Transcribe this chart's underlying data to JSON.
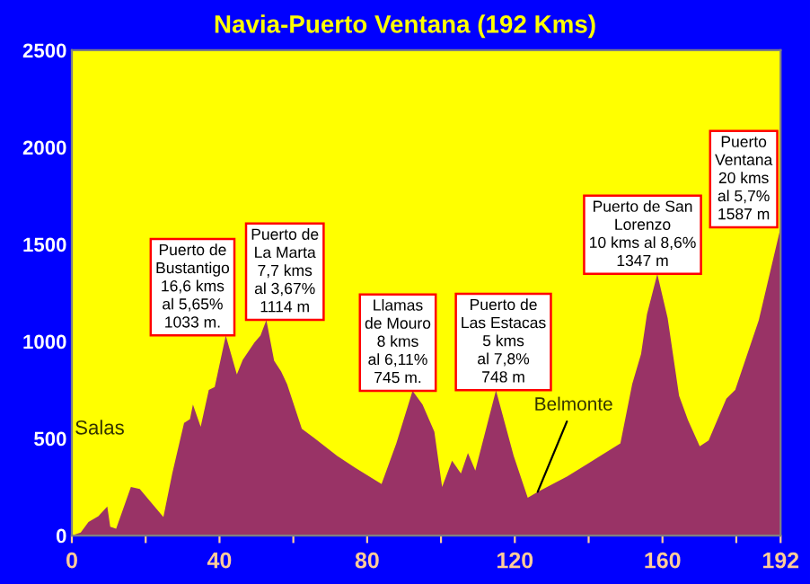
{
  "chart_data": {
    "type": "area",
    "title": "Navia-Puerto Ventana (192 Kms)",
    "xlim": [
      0,
      192
    ],
    "xticks": [
      0,
      {
        "value": 20,
        "label": null
      },
      40,
      {
        "value": 60,
        "label": null
      },
      80,
      {
        "value": 100,
        "label": null
      },
      120,
      {
        "value": 140,
        "label": null
      },
      160,
      {
        "value": 180,
        "label": null
      },
      192
    ],
    "ylim": [
      0,
      2500
    ],
    "yticks": [
      0,
      500,
      1000,
      1500,
      2000,
      2500
    ],
    "grid": false,
    "legend": false,
    "series": [
      {
        "color": "#993366",
        "x": [
          0,
          2.4,
          4.5,
          7.2,
          9.6,
          10.4,
          12,
          16,
          18.4,
          24.8,
          27.2,
          30.4,
          32,
          32.8,
          34.9,
          37.1,
          38.7,
          41.7,
          44.7,
          46.3,
          49.5,
          51.1,
          52.7,
          54.8,
          56.7,
          58.3,
          62.3,
          65.5,
          71.9,
          76.7,
          83.9,
          87.9,
          92.3,
          95,
          98.2,
          100.3,
          103,
          105.4,
          107.3,
          109.3,
          114.9,
          119.7,
          123.5,
          126.2,
          134.2,
          140.6,
          148.6,
          151.8,
          154.2,
          155.8,
          158.6,
          161.4,
          164.5,
          166.9,
          170.1,
          172.5,
          177.3,
          179.7,
          186.1,
          192
        ],
        "values": [
          0,
          15,
          70,
          100,
          150,
          45,
          35,
          250,
          240,
          95,
          320,
          580,
          600,
          675,
          560,
          750,
          765,
          1030,
          830,
          905,
          995,
          1030,
          1110,
          900,
          845,
          780,
          550,
          505,
          410,
          350,
          265,
          475,
          745,
          675,
          535,
          250,
          385,
          320,
          425,
          335,
          748,
          410,
          195,
          225,
          305,
          380,
          475,
          780,
          935,
          1140,
          1347,
          1120,
          720,
          595,
          460,
          490,
          705,
          750,
          1110,
          1587
        ]
      }
    ],
    "annotations": [
      "Salas",
      {
        "text": "Belmonte",
        "x": 126.2,
        "y": 225
      },
      {
        "text": "Puerto de\nBustantigo\n16,6 kms\nal 5,65%\n1033 m.",
        "x": 41.7,
        "y": 1030
      },
      {
        "text": "Puerto de\nLa Marta\n7,7 kms\nal 3,67%\n1114 m",
        "x": 52.7,
        "y": 1110
      },
      {
        "text": "Llamas\nde Mouro\n8 kms\nal 6,11%\n745 m.",
        "x": 92.3,
        "y": 745
      },
      {
        "text": "Puerto de\nLas Estacas\n5 kms\nal 7,8%\n748 m",
        "x": 114.9,
        "y": 748
      },
      {
        "text": "Puerto de San\nLorenzo\n10 kms al 8,6%\n1347 m",
        "x": 158.6,
        "y": 1347
      },
      {
        "text": "Puerto\nVentana\n20 kms\nal 5,7%\n1587 m",
        "x": 192,
        "y": 1587
      }
    ]
  }
}
